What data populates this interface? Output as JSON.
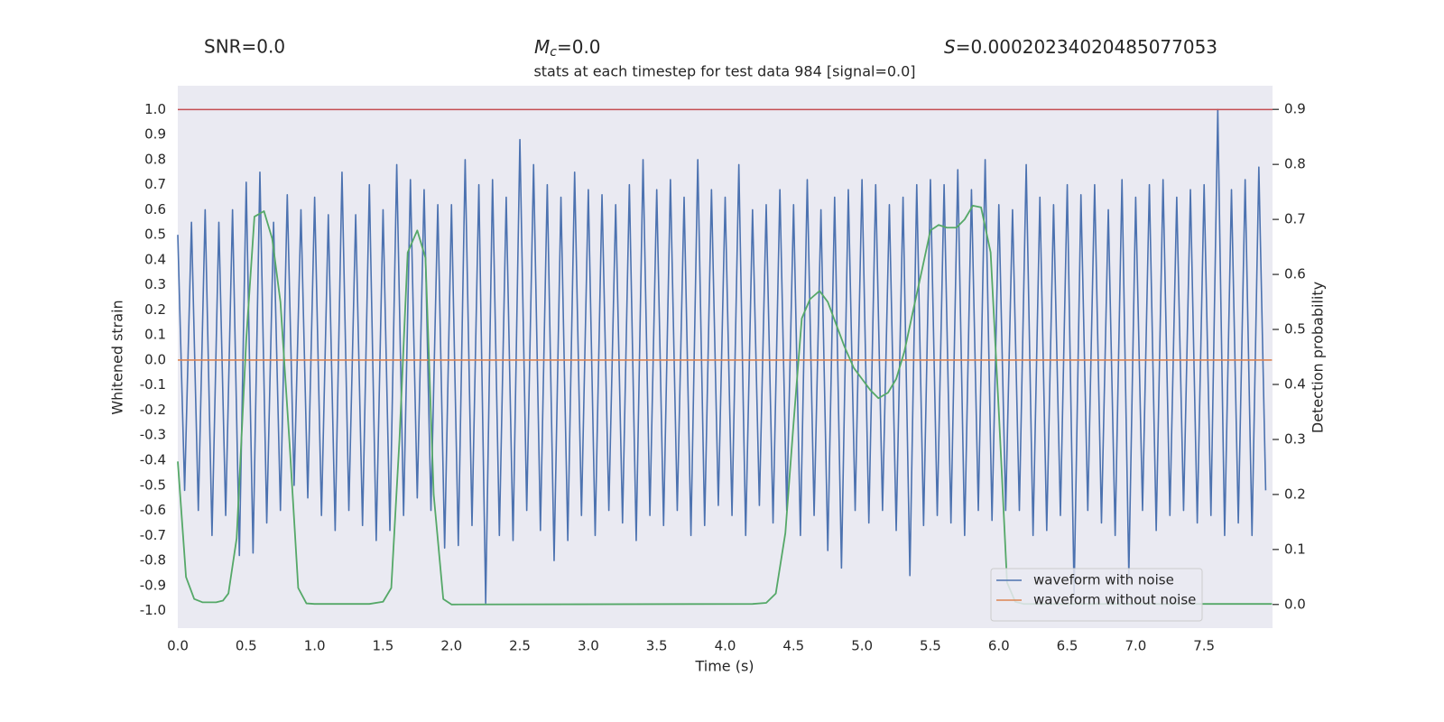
{
  "chart_data": {
    "type": "line",
    "annotations": [
      {
        "text": "SNR=0.0"
      },
      {
        "symbol": "M",
        "subscript": "c",
        "text": "=0.0"
      },
      {
        "symbol": "S",
        "text": "=0.00020234020485077053"
      }
    ],
    "title": "stats at each timestep for test data 984 [signal=0.0]",
    "xlabel": "Time (s)",
    "ylabel": "Whitened strain",
    "y2label": "Detection probability",
    "xlim": [
      0,
      8
    ],
    "ylim": [
      -1.07,
      1.095
    ],
    "y2lim": [
      -0.043,
      0.943
    ],
    "xticks": [
      {
        "value": 0,
        "label": "0.0"
      },
      0.5,
      {
        "value": 1,
        "label": "1.0"
      },
      1.5,
      {
        "value": 2,
        "label": "2.0"
      },
      2.5,
      {
        "value": 3,
        "label": "3.0"
      },
      3.5,
      {
        "value": 4,
        "label": "4.0"
      },
      4.5,
      {
        "value": 5,
        "label": "5.0"
      },
      5.5,
      {
        "value": 6,
        "label": "6.0"
      },
      6.5,
      {
        "value": 7,
        "label": "7.0"
      },
      7.5
    ],
    "yticks": [
      {
        "value": -1,
        "label": "-1.0"
      },
      -0.9,
      -0.8,
      -0.7,
      -0.6,
      -0.5,
      -0.4,
      -0.3,
      -0.2,
      -0.1,
      {
        "value": 0,
        "label": "0.0"
      },
      0.1,
      0.2,
      0.3,
      0.4,
      0.5,
      0.6,
      0.7,
      0.8,
      0.9,
      {
        "value": 1,
        "label": "1.0"
      }
    ],
    "y2ticks": [
      {
        "value": 0,
        "label": "0.0"
      },
      0.1,
      0.2,
      0.3,
      0.4,
      0.5,
      0.6,
      0.7,
      0.8,
      0.9
    ],
    "grid": true,
    "legend": "lower right",
    "reference_line": {
      "value": 1.0,
      "color": "#c44e52"
    },
    "series": [
      {
        "name": "waveform with noise",
        "color": "#4c72b0",
        "x": [
          0,
          0.05,
          0.1,
          0.15,
          0.2,
          0.25,
          0.3,
          0.35,
          0.4,
          0.45,
          0.5,
          0.55,
          0.6,
          0.65,
          0.7,
          0.75,
          0.8,
          0.85,
          0.9,
          0.95,
          1,
          1.05,
          1.1,
          1.15,
          1.2,
          1.25,
          1.3,
          1.35,
          1.4,
          1.45,
          1.5,
          1.55,
          1.6,
          1.65,
          1.7,
          1.75,
          1.8,
          1.85,
          1.9,
          1.95,
          2,
          2.05,
          2.1,
          2.15,
          2.2,
          2.25,
          2.3,
          2.35,
          2.4,
          2.45,
          2.5,
          2.55,
          2.6,
          2.65,
          2.7,
          2.75,
          2.8,
          2.85,
          2.9,
          2.95,
          3,
          3.05,
          3.1,
          3.15,
          3.2,
          3.25,
          3.3,
          3.35,
          3.4,
          3.45,
          3.5,
          3.55,
          3.6,
          3.65,
          3.7,
          3.75,
          3.8,
          3.85,
          3.9,
          3.95,
          4,
          4.05,
          4.1,
          4.15,
          4.2,
          4.25,
          4.3,
          4.35,
          4.4,
          4.45,
          4.5,
          4.55,
          4.6,
          4.65,
          4.7,
          4.75,
          4.8,
          4.85,
          4.9,
          4.95,
          5,
          5.05,
          5.1,
          5.15,
          5.2,
          5.25,
          5.3,
          5.35,
          5.4,
          5.45,
          5.5,
          5.55,
          5.6,
          5.65,
          5.7,
          5.75,
          5.8,
          5.85,
          5.9,
          5.95,
          6,
          6.05,
          6.1,
          6.15,
          6.2,
          6.25,
          6.3,
          6.35,
          6.4,
          6.45,
          6.5,
          6.55,
          6.6,
          6.65,
          6.7,
          6.75,
          6.8,
          6.85,
          6.9,
          6.95,
          7,
          7.05,
          7.1,
          7.15,
          7.2,
          7.25,
          7.3,
          7.35,
          7.4,
          7.45,
          7.5,
          7.55,
          7.6,
          7.65,
          7.7,
          7.75,
          7.8,
          7.85,
          7.9,
          7.95
        ],
        "values": [
          0.5,
          -0.52,
          0.55,
          -0.6,
          0.6,
          -0.7,
          0.55,
          -0.62,
          0.6,
          -0.78,
          0.71,
          -0.77,
          0.75,
          -0.65,
          0.55,
          -0.6,
          0.66,
          -0.5,
          0.6,
          -0.55,
          0.65,
          -0.62,
          0.58,
          -0.68,
          0.75,
          -0.6,
          0.58,
          -0.66,
          0.7,
          -0.72,
          0.6,
          -0.68,
          0.78,
          -0.62,
          0.72,
          -0.55,
          0.68,
          -0.6,
          0.62,
          -0.75,
          0.62,
          -0.74,
          0.8,
          -0.66,
          0.7,
          -0.97,
          0.72,
          -0.7,
          0.65,
          -0.72,
          0.88,
          -0.6,
          0.78,
          -0.68,
          0.7,
          -0.8,
          0.65,
          -0.72,
          0.75,
          -0.62,
          0.68,
          -0.7,
          0.66,
          -0.6,
          0.62,
          -0.65,
          0.7,
          -0.72,
          0.8,
          -0.62,
          0.68,
          -0.66,
          0.72,
          -0.6,
          0.65,
          -0.7,
          0.8,
          -0.66,
          0.68,
          -0.58,
          0.65,
          -0.62,
          0.78,
          -0.7,
          0.6,
          -0.58,
          0.62,
          -0.65,
          0.68,
          -0.6,
          0.62,
          -0.7,
          0.72,
          -0.62,
          0.6,
          -0.76,
          0.65,
          -0.83,
          0.68,
          -0.6,
          0.72,
          -0.65,
          0.7,
          -0.6,
          0.62,
          -0.68,
          0.65,
          -0.86,
          0.7,
          -0.66,
          0.72,
          -0.62,
          0.7,
          -0.65,
          0.76,
          -0.7,
          0.68,
          -0.6,
          0.8,
          -0.64,
          0.62,
          -0.6,
          0.6,
          -0.6,
          0.78,
          -0.7,
          0.65,
          -0.68,
          0.62,
          -0.62,
          0.7,
          -0.93,
          0.66,
          -0.6,
          0.7,
          -0.65,
          0.6,
          -0.7,
          0.72,
          -0.86,
          0.65,
          -0.6,
          0.7,
          -0.68,
          0.72,
          -0.62,
          0.65,
          -0.6,
          0.68,
          -0.65,
          0.7,
          -0.62,
          1.0,
          -0.7,
          0.68,
          -0.65,
          0.72,
          -0.7,
          0.77,
          -0.52
        ]
      },
      {
        "name": "waveform without noise",
        "color": "#dd8452",
        "x": [
          0,
          7.996
        ],
        "values": [
          0,
          0
        ]
      },
      {
        "color": "#55a868",
        "axis": "y2",
        "x": [
          0,
          0.06,
          0.12,
          0.18,
          0.28,
          0.33,
          0.37,
          0.43,
          0.5,
          0.56,
          0.63,
          0.69,
          0.75,
          0.82,
          0.88,
          0.94,
          1.0,
          1.4,
          1.5,
          1.56,
          1.62,
          1.68,
          1.75,
          1.81,
          1.87,
          1.94,
          2.0,
          4.2,
          4.3,
          4.37,
          4.44,
          4.5,
          4.56,
          4.62,
          4.69,
          4.75,
          4.81,
          4.87,
          4.94,
          5.0,
          5.06,
          5.12,
          5.19,
          5.25,
          5.31,
          5.37,
          5.44,
          5.5,
          5.56,
          5.62,
          5.69,
          5.75,
          5.81,
          5.87,
          5.94,
          6.0,
          6.06,
          6.12,
          6.18,
          7.996
        ],
        "values": [
          0.26,
          0.05,
          0.01,
          0.004,
          0.004,
          0.007,
          0.02,
          0.12,
          0.48,
          0.705,
          0.715,
          0.665,
          0.55,
          0.28,
          0.03,
          0.002,
          0.001,
          0.001,
          0.005,
          0.03,
          0.3,
          0.64,
          0.68,
          0.63,
          0.2,
          0.01,
          0.0,
          0.001,
          0.003,
          0.02,
          0.13,
          0.33,
          0.52,
          0.555,
          0.57,
          0.55,
          0.51,
          0.47,
          0.43,
          0.41,
          0.39,
          0.375,
          0.385,
          0.41,
          0.46,
          0.53,
          0.61,
          0.68,
          0.69,
          0.685,
          0.685,
          0.7,
          0.725,
          0.722,
          0.64,
          0.35,
          0.04,
          0.005,
          0.001,
          0.001
        ]
      }
    ]
  }
}
